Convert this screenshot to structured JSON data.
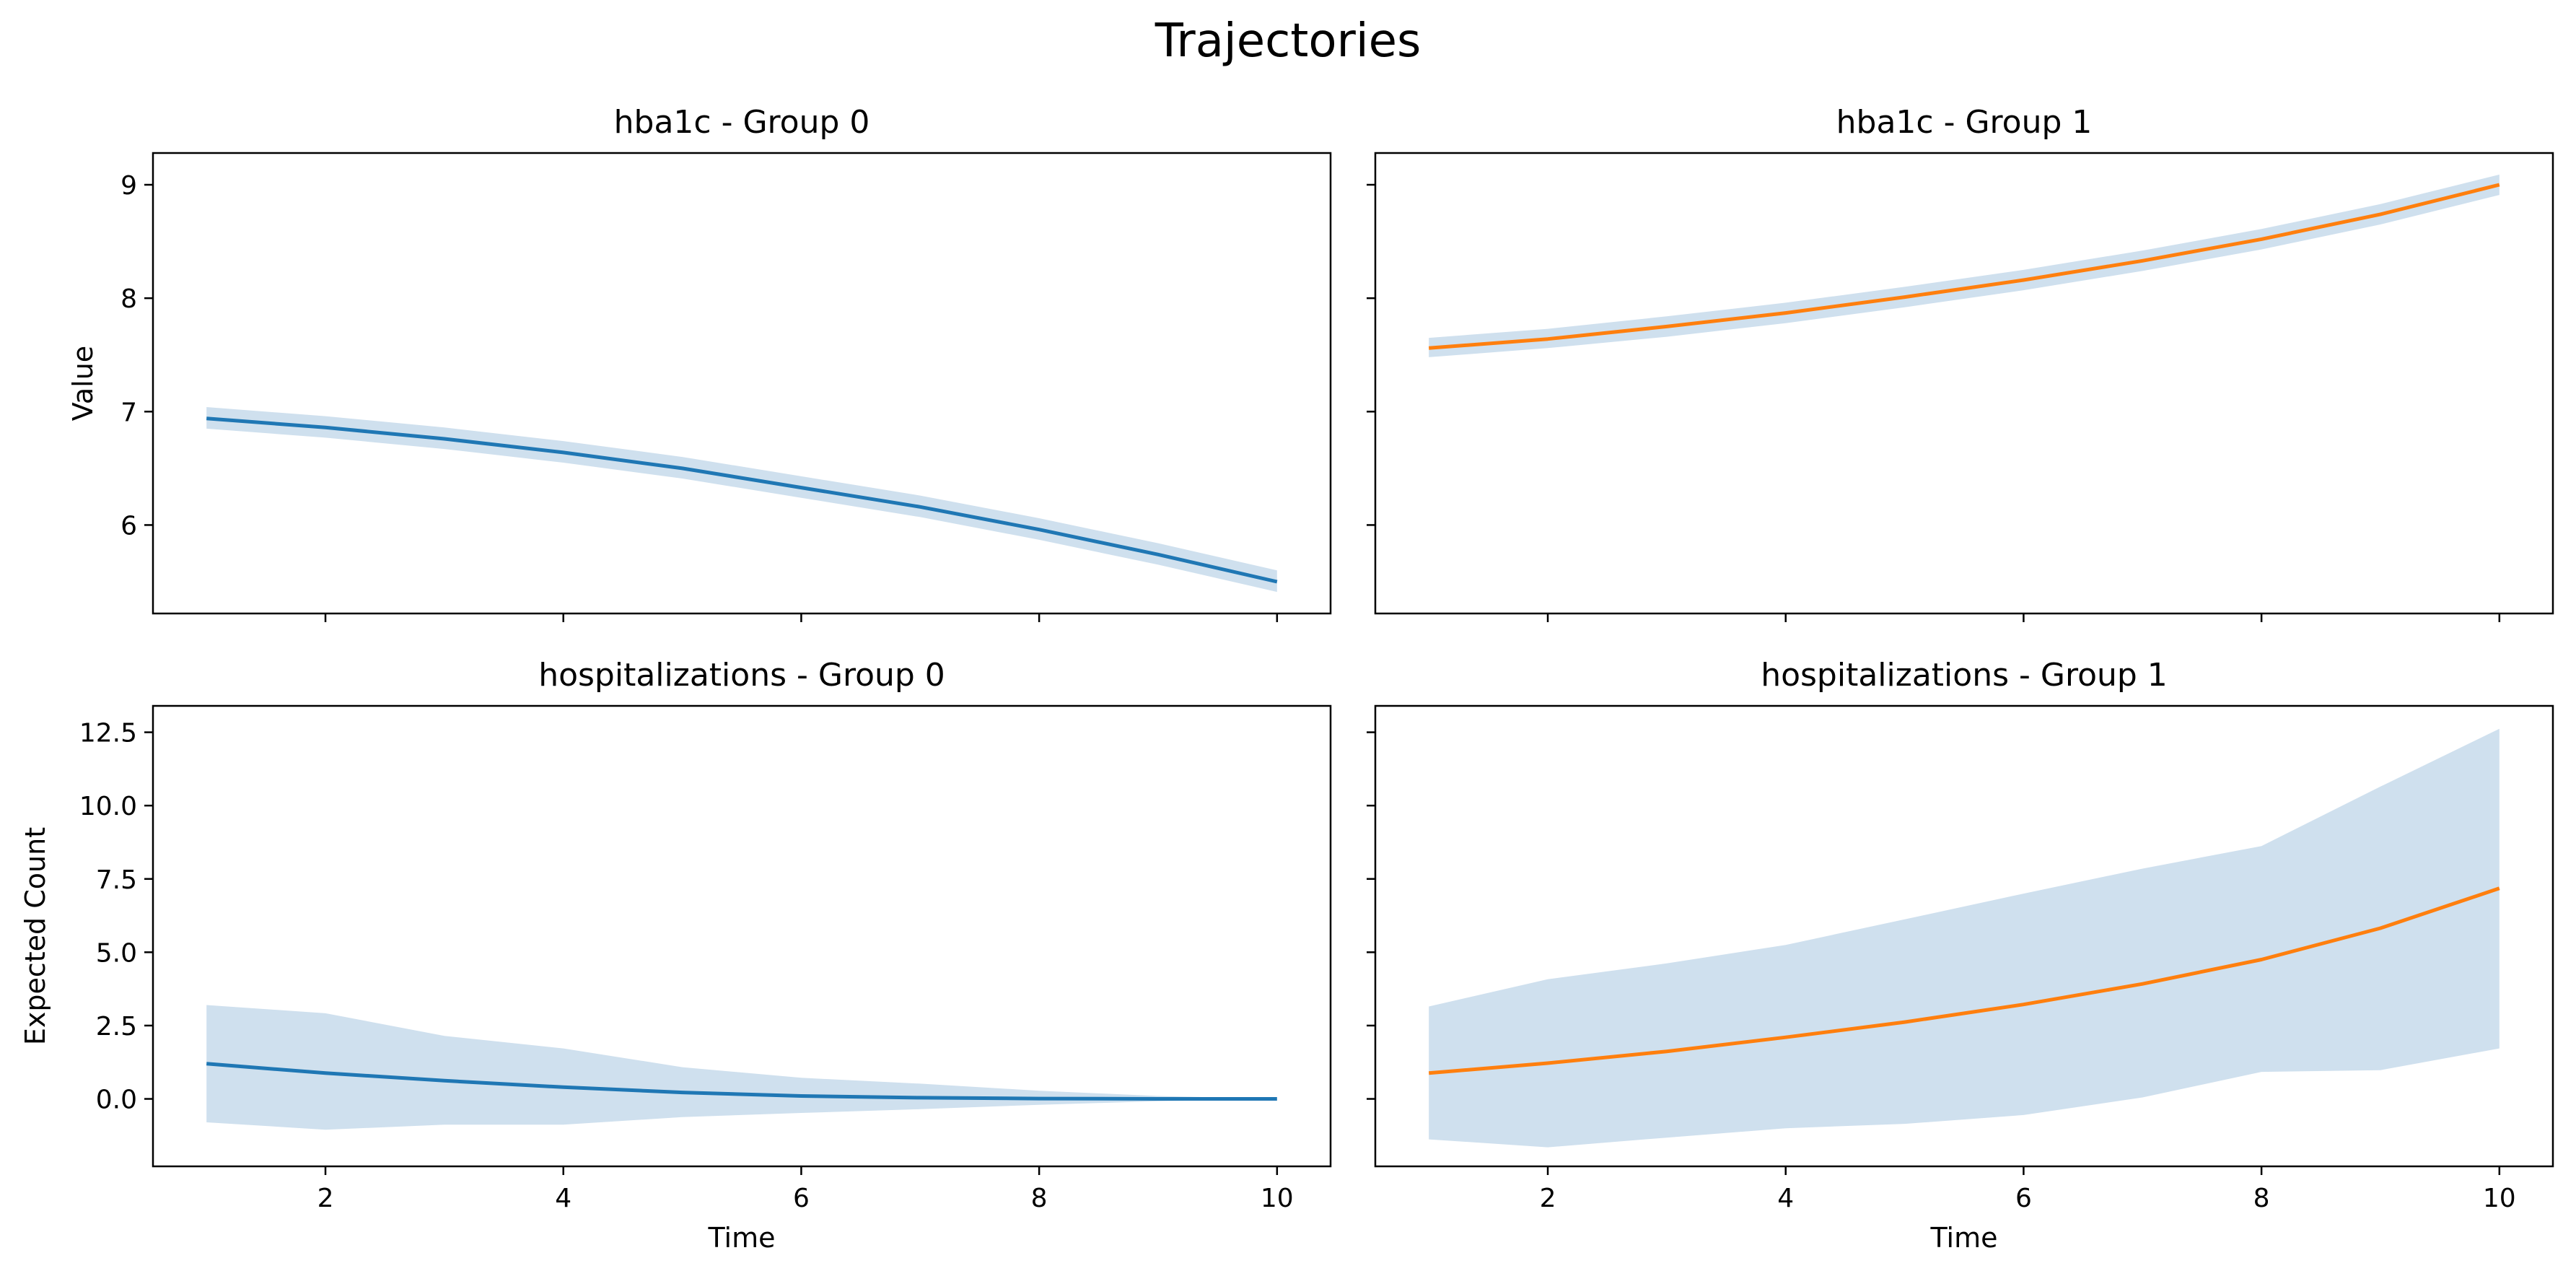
{
  "figure": {
    "title": "Trajectories"
  },
  "chart_data": [
    {
      "type": "line",
      "title": "hba1c - Group 0",
      "xlabel": "",
      "ylabel": "Value",
      "xlim": [
        0.55,
        10.45
      ],
      "ylim": [
        5.22,
        9.28
      ],
      "xticks": [
        2,
        4,
        6,
        8,
        10
      ],
      "yticks": [
        6,
        7,
        8,
        9
      ],
      "show_xtick_labels": false,
      "show_ytick_labels": true,
      "color": "#1f77b4",
      "band_color": "#cfe0ee",
      "x": [
        1,
        2,
        3,
        4,
        5,
        6,
        7,
        8,
        9,
        10
      ],
      "y": [
        6.94,
        6.86,
        6.76,
        6.64,
        6.5,
        6.33,
        6.16,
        5.96,
        5.74,
        5.5
      ],
      "band_lower": [
        6.85,
        6.77,
        6.67,
        6.55,
        6.41,
        6.24,
        6.07,
        5.87,
        5.65,
        5.41
      ],
      "band_upper": [
        7.04,
        6.96,
        6.86,
        6.74,
        6.6,
        6.43,
        6.26,
        6.06,
        5.84,
        5.6
      ]
    },
    {
      "type": "line",
      "title": "hba1c - Group 1",
      "xlabel": "",
      "ylabel": "",
      "xlim": [
        0.55,
        10.45
      ],
      "ylim": [
        5.22,
        9.28
      ],
      "xticks": [
        2,
        4,
        6,
        8,
        10
      ],
      "yticks": [
        6,
        7,
        8,
        9
      ],
      "show_xtick_labels": false,
      "show_ytick_labels": false,
      "color": "#ff7f0e",
      "band_color": "#cfe0ee",
      "x": [
        1,
        2,
        3,
        4,
        5,
        6,
        7,
        8,
        9,
        10
      ],
      "y": [
        7.56,
        7.64,
        7.75,
        7.87,
        8.01,
        8.16,
        8.33,
        8.52,
        8.74,
        9.0
      ],
      "band_lower": [
        7.48,
        7.56,
        7.66,
        7.78,
        7.92,
        8.07,
        8.24,
        8.43,
        8.65,
        8.91
      ],
      "band_upper": [
        7.65,
        7.73,
        7.84,
        7.96,
        8.1,
        8.25,
        8.42,
        8.61,
        8.83,
        9.09
      ]
    },
    {
      "type": "line",
      "title": "hospitalizations - Group 0",
      "xlabel": "Time",
      "ylabel": "Expected Count",
      "xlim": [
        0.55,
        10.45
      ],
      "ylim": [
        -2.3,
        13.4
      ],
      "xticks": [
        2,
        4,
        6,
        8,
        10
      ],
      "yticks": [
        0.0,
        2.5,
        5.0,
        7.5,
        10.0,
        12.5
      ],
      "ytick_labels": [
        "0.0",
        "2.5",
        "5.0",
        "7.5",
        "10.0",
        "12.5"
      ],
      "xtick_labels": [
        "2",
        "4",
        "6",
        "8",
        "10"
      ],
      "show_xtick_labels": true,
      "show_ytick_labels": true,
      "color": "#1f77b4",
      "band_color": "#cfe0ee",
      "x": [
        1,
        2,
        3,
        4,
        5,
        6,
        7,
        8,
        9,
        10
      ],
      "y": [
        1.2,
        0.88,
        0.62,
        0.4,
        0.22,
        0.1,
        0.04,
        0.01,
        0.0,
        0.0
      ],
      "band_lower": [
        -0.8,
        -1.05,
        -0.88,
        -0.88,
        -0.62,
        -0.48,
        -0.35,
        -0.2,
        -0.08,
        0.0
      ],
      "band_upper": [
        3.2,
        2.92,
        2.15,
        1.72,
        1.08,
        0.72,
        0.52,
        0.28,
        0.1,
        0.0
      ]
    },
    {
      "type": "line",
      "title": "hospitalizations - Group 1",
      "xlabel": "Time",
      "ylabel": "",
      "xlim": [
        0.55,
        10.45
      ],
      "ylim": [
        -2.3,
        13.4
      ],
      "xticks": [
        2,
        4,
        6,
        8,
        10
      ],
      "yticks": [
        0.0,
        2.5,
        5.0,
        7.5,
        10.0,
        12.5
      ],
      "xtick_labels": [
        "2",
        "4",
        "6",
        "8",
        "10"
      ],
      "show_xtick_labels": true,
      "show_ytick_labels": false,
      "color": "#ff7f0e",
      "band_color": "#cfe0ee",
      "x": [
        1,
        2,
        3,
        4,
        5,
        6,
        7,
        8,
        9,
        10
      ],
      "y": [
        0.88,
        1.22,
        1.62,
        2.1,
        2.62,
        3.22,
        3.92,
        4.75,
        5.82,
        7.18
      ],
      "band_lower": [
        -1.38,
        -1.65,
        -1.32,
        -1.0,
        -0.85,
        -0.55,
        0.05,
        0.92,
        0.98,
        1.72
      ],
      "band_upper": [
        3.15,
        4.08,
        4.62,
        5.25,
        6.12,
        7.0,
        7.85,
        8.62,
        10.65,
        12.62
      ]
    }
  ]
}
